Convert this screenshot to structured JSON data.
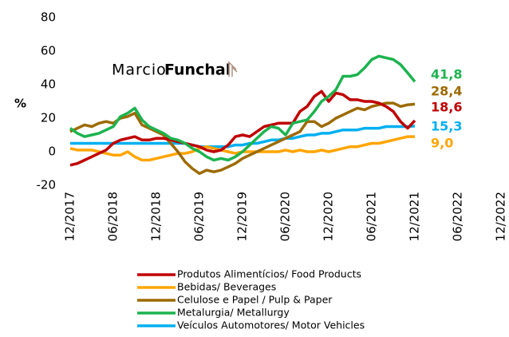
{
  "chart_data": {
    "type": "line",
    "ylabel": "%",
    "watermark": [
      "Marcio",
      "Funchal"
    ],
    "categories": [
      "12/2017",
      null,
      null,
      null,
      null,
      null,
      "06/2018",
      null,
      null,
      null,
      null,
      null,
      "12/2018",
      null,
      null,
      null,
      null,
      null,
      "06/2019",
      null,
      null,
      null,
      null,
      null,
      "12/2019",
      null,
      null,
      null,
      null,
      null,
      "06/2020",
      null,
      null,
      null,
      null,
      null,
      "12/2020",
      null,
      null,
      null,
      null,
      null,
      "06/2021",
      null,
      null,
      null,
      null,
      null,
      "12/2021",
      null,
      null,
      null,
      null,
      null,
      "06/2022",
      null,
      null,
      null,
      null,
      null,
      "12/2022"
    ],
    "ylim": [
      -20,
      80
    ],
    "yticks": [
      -20,
      0,
      20,
      40,
      60,
      80
    ],
    "grid": false,
    "series": [
      {
        "name": "Produtos Alimentícios/ Food Products",
        "color": "#c00000",
        "values": [
          -8,
          -7,
          -5,
          -3,
          -1,
          1,
          5,
          7,
          8,
          9,
          7,
          7,
          8,
          8,
          7,
          6,
          5,
          4,
          3,
          1,
          0,
          1,
          4,
          9,
          10,
          9,
          12,
          15,
          16,
          17,
          17,
          17,
          24,
          27,
          33,
          36,
          30,
          35,
          34,
          31,
          31,
          30,
          30,
          29,
          27,
          24,
          18,
          14,
          18.6,
          null,
          null,
          null,
          null,
          null,
          null,
          null,
          null,
          null,
          null,
          null,
          null
        ],
        "value_labels": [
          null,
          null,
          null,
          null,
          null,
          null,
          null,
          null,
          null,
          null,
          null,
          null,
          null,
          null,
          null,
          null,
          null,
          null,
          null,
          null,
          null,
          null,
          null,
          null,
          null,
          null,
          null,
          null,
          null,
          null,
          null,
          null,
          null,
          null,
          null,
          null,
          null,
          null,
          null,
          null,
          null,
          null,
          null,
          null,
          null,
          null,
          null,
          null,
          "18,6",
          null,
          null,
          null,
          null,
          null,
          null,
          null,
          null,
          null,
          null,
          null,
          null
        ]
      },
      {
        "name": "Bebidas/ Beverages",
        "color": "#ffa500",
        "values": [
          2,
          1,
          1,
          1,
          0,
          -1,
          -2,
          -2,
          0,
          -3,
          -5,
          -5,
          -4,
          -3,
          -2,
          -1,
          -1,
          0,
          2,
          3,
          2,
          1,
          0,
          -1,
          0,
          0,
          0,
          0,
          0,
          0,
          1,
          0,
          1,
          0,
          0,
          1,
          0,
          1,
          2,
          3,
          3,
          4,
          5,
          5,
          6,
          7,
          8,
          9,
          9.0,
          null,
          null,
          null,
          null,
          null,
          null,
          null,
          null,
          null,
          null,
          null,
          null
        ],
        "value_labels": [
          null,
          null,
          null,
          null,
          null,
          null,
          null,
          null,
          null,
          null,
          null,
          null,
          null,
          null,
          null,
          null,
          null,
          null,
          null,
          null,
          null,
          null,
          null,
          null,
          null,
          null,
          null,
          null,
          null,
          null,
          null,
          null,
          null,
          null,
          null,
          null,
          null,
          null,
          null,
          null,
          null,
          null,
          null,
          null,
          null,
          null,
          null,
          null,
          "9,0",
          null,
          null,
          null,
          null,
          null,
          null,
          null,
          null,
          null,
          null,
          null,
          null
        ]
      },
      {
        "name": "Celulose e Papel / Pulp & Paper",
        "color": "#9c6a00",
        "values": [
          12,
          14,
          16,
          15,
          17,
          18,
          17,
          20,
          21,
          23,
          16,
          14,
          12,
          10,
          5,
          0,
          -6,
          -10,
          -13,
          -11,
          -12,
          -11,
          -9,
          -7,
          -4,
          -2,
          0,
          2,
          4,
          6,
          8,
          10,
          12,
          18,
          18,
          15,
          17,
          20,
          22,
          24,
          26,
          25,
          27,
          28,
          29,
          29,
          27,
          28,
          28.4,
          null,
          null,
          null,
          null,
          null,
          null,
          null,
          null,
          null,
          null,
          null,
          null
        ],
        "value_labels": [
          null,
          null,
          null,
          null,
          null,
          null,
          null,
          null,
          null,
          null,
          null,
          null,
          null,
          null,
          null,
          null,
          null,
          null,
          null,
          null,
          null,
          null,
          null,
          null,
          null,
          null,
          null,
          null,
          null,
          null,
          null,
          null,
          null,
          null,
          null,
          null,
          null,
          null,
          null,
          null,
          null,
          null,
          null,
          null,
          null,
          null,
          null,
          null,
          "28,4",
          null,
          null,
          null,
          null,
          null,
          null,
          null,
          null,
          null,
          null,
          null,
          null
        ]
      },
      {
        "name": "Metalurgia/ Metallurgy",
        "color": "#1db34f",
        "values": [
          14,
          11,
          9,
          10,
          11,
          13,
          15,
          21,
          23,
          26,
          19,
          15,
          13,
          11,
          8,
          7,
          5,
          2,
          0,
          -3,
          -5,
          -4,
          -5,
          -3,
          0,
          4,
          8,
          12,
          15,
          14,
          10,
          17,
          18,
          19,
          24,
          30,
          33,
          37,
          45,
          45,
          46,
          50,
          55,
          57,
          56,
          55,
          52,
          47,
          41.8,
          null,
          null,
          null,
          null,
          null,
          null,
          null,
          null,
          null,
          null,
          null,
          null
        ],
        "value_labels": [
          null,
          null,
          null,
          null,
          null,
          null,
          null,
          null,
          null,
          null,
          null,
          null,
          null,
          null,
          null,
          null,
          null,
          null,
          null,
          null,
          null,
          null,
          null,
          null,
          null,
          null,
          null,
          null,
          null,
          null,
          null,
          null,
          null,
          null,
          null,
          null,
          null,
          null,
          null,
          null,
          null,
          null,
          null,
          null,
          null,
          null,
          null,
          null,
          "41,8",
          null,
          null,
          null,
          null,
          null,
          null,
          null,
          null,
          null,
          null,
          null,
          null
        ]
      },
      {
        "name": "Veículos Automotores/ Motor Vehicles",
        "color": "#00b0f0",
        "values": [
          5,
          5,
          5,
          5,
          5,
          5,
          5,
          5,
          5,
          5,
          5,
          5,
          5,
          5,
          5,
          5,
          5,
          4,
          3,
          3,
          3,
          3,
          3,
          4,
          4,
          5,
          5,
          6,
          7,
          7,
          8,
          8,
          9,
          10,
          10,
          11,
          11,
          12,
          13,
          13,
          13,
          14,
          14,
          14,
          15,
          15,
          15,
          15,
          15.3,
          null,
          null,
          null,
          null,
          null,
          null,
          null,
          null,
          null,
          null,
          null,
          null
        ],
        "value_labels": [
          null,
          null,
          null,
          null,
          null,
          null,
          null,
          null,
          null,
          null,
          null,
          null,
          null,
          null,
          null,
          null,
          null,
          null,
          null,
          null,
          null,
          null,
          null,
          null,
          null,
          null,
          null,
          null,
          null,
          null,
          null,
          null,
          null,
          null,
          null,
          null,
          null,
          null,
          null,
          null,
          null,
          null,
          null,
          null,
          null,
          null,
          null,
          null,
          "15,3",
          null,
          null,
          null,
          null,
          null,
          null,
          null,
          null,
          null,
          null,
          null,
          null
        ]
      }
    ]
  }
}
